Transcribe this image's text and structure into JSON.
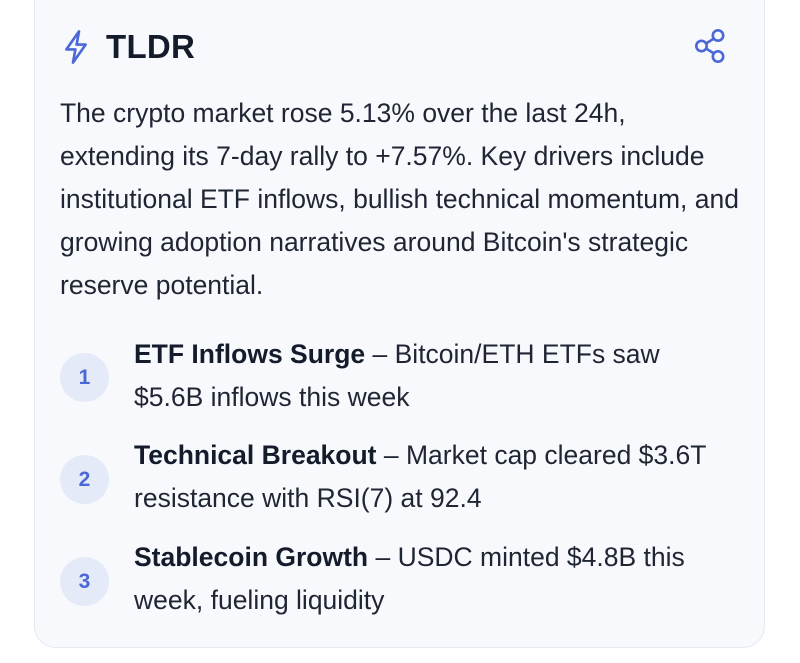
{
  "header": {
    "icon": "lightning-bolt-icon",
    "title": "TLDR",
    "share_icon": "share-icon"
  },
  "summary": "The crypto market rose 5.13% over the last 24h, extending its 7-day rally to +7.57%. Key drivers include institutional ETF inflows, bullish technical momentum, and growing adoption narratives around Bitcoin's strategic reserve potential.",
  "points": [
    {
      "number": "1",
      "title": "ETF Inflows Surge",
      "separator": " – ",
      "text": "Bitcoin/ETH ETFs saw $5.6B inflows this week"
    },
    {
      "number": "2",
      "title": "Technical Breakout",
      "separator": " – ",
      "text": "Market cap cleared $3.6T resistance with RSI(7) at 92.4"
    },
    {
      "number": "3",
      "title": "Stablecoin Growth",
      "separator": " – ",
      "text": "USDC minted $4.8B this week, fueling liquidity"
    }
  ],
  "colors": {
    "accent": "#4a68d6",
    "card_background": "#f7f9fd",
    "badge_background": "#e5eaf8",
    "text": "#1f2533"
  }
}
